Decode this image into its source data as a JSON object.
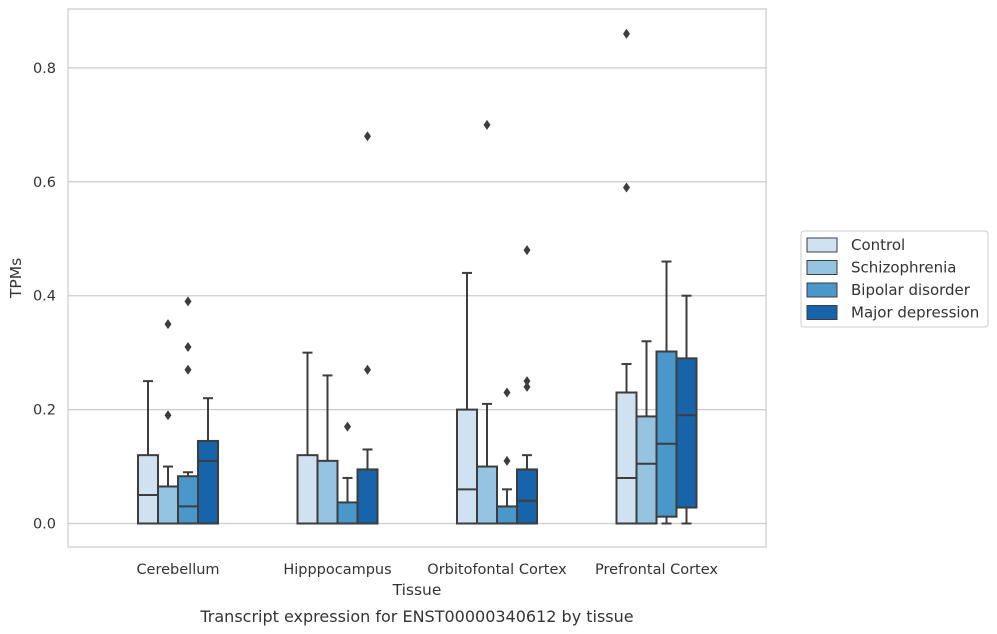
{
  "chart_data": {
    "type": "box",
    "xlabel": "Tissue",
    "ylabel": "TPMs",
    "caption": "Transcript expression for ENST00000340612 by tissue",
    "ylim": [
      -0.04,
      0.905
    ],
    "yticks": [
      0.0,
      0.2,
      0.4,
      0.6,
      0.8
    ],
    "ytick_labels": [
      "0.0",
      "0.2",
      "0.4",
      "0.6",
      "0.8"
    ],
    "grid": true,
    "legend_position": "right",
    "categories": [
      "Cerebellum",
      "Hipppocampus",
      "Orbitofontal Cortex",
      "Prefrontal Cortex"
    ],
    "series": [
      {
        "name": "Control",
        "color": "#d0e1f2",
        "boxes": [
          {
            "whislo": 0.0,
            "q1": 0.0,
            "med": 0.05,
            "q3": 0.12,
            "whishi": 0.25,
            "fliers": []
          },
          {
            "whislo": 0.0,
            "q1": 0.0,
            "med": 0.0,
            "q3": 0.12,
            "whishi": 0.3,
            "fliers": []
          },
          {
            "whislo": 0.0,
            "q1": 0.0,
            "med": 0.06,
            "q3": 0.2,
            "whishi": 0.44,
            "fliers": []
          },
          {
            "whislo": 0.0,
            "q1": 0.0,
            "med": 0.08,
            "q3": 0.23,
            "whishi": 0.28,
            "fliers": [
              0.59,
              0.86
            ]
          }
        ]
      },
      {
        "name": "Schizophrenia",
        "color": "#94c4df",
        "boxes": [
          {
            "whislo": 0.0,
            "q1": 0.0,
            "med": 0.0,
            "q3": 0.065,
            "whishi": 0.1,
            "fliers": [
              0.19,
              0.35
            ]
          },
          {
            "whislo": 0.0,
            "q1": 0.0,
            "med": 0.0,
            "q3": 0.11,
            "whishi": 0.26,
            "fliers": []
          },
          {
            "whislo": 0.0,
            "q1": 0.0,
            "med": 0.0,
            "q3": 0.1,
            "whishi": 0.21,
            "fliers": [
              0.7
            ]
          },
          {
            "whislo": 0.0,
            "q1": 0.0,
            "med": 0.105,
            "q3": 0.188,
            "whishi": 0.32,
            "fliers": []
          }
        ]
      },
      {
        "name": "Bipolar disorder",
        "color": "#4a98c9",
        "boxes": [
          {
            "whislo": 0.0,
            "q1": 0.0,
            "med": 0.03,
            "q3": 0.083,
            "whishi": 0.09,
            "fliers": [
              0.27,
              0.31,
              0.39
            ]
          },
          {
            "whislo": 0.0,
            "q1": 0.0,
            "med": 0.0,
            "q3": 0.037,
            "whishi": 0.08,
            "fliers": [
              0.17
            ]
          },
          {
            "whislo": 0.0,
            "q1": 0.0,
            "med": 0.0,
            "q3": 0.03,
            "whishi": 0.06,
            "fliers": [
              0.11,
              0.23
            ]
          },
          {
            "whislo": 0.0,
            "q1": 0.012,
            "med": 0.14,
            "q3": 0.302,
            "whishi": 0.46,
            "fliers": []
          }
        ]
      },
      {
        "name": "Major depression",
        "color": "#1764ab",
        "boxes": [
          {
            "whislo": 0.0,
            "q1": 0.0,
            "med": 0.11,
            "q3": 0.145,
            "whishi": 0.22,
            "fliers": []
          },
          {
            "whislo": 0.0,
            "q1": 0.0,
            "med": 0.0,
            "q3": 0.095,
            "whishi": 0.13,
            "fliers": [
              0.27,
              0.68
            ]
          },
          {
            "whislo": 0.0,
            "q1": 0.0,
            "med": 0.04,
            "q3": 0.095,
            "whishi": 0.12,
            "fliers": [
              0.24,
              0.25,
              0.48
            ]
          },
          {
            "whislo": 0.0,
            "q1": 0.028,
            "med": 0.19,
            "q3": 0.29,
            "whishi": 0.4,
            "fliers": []
          }
        ]
      }
    ]
  }
}
